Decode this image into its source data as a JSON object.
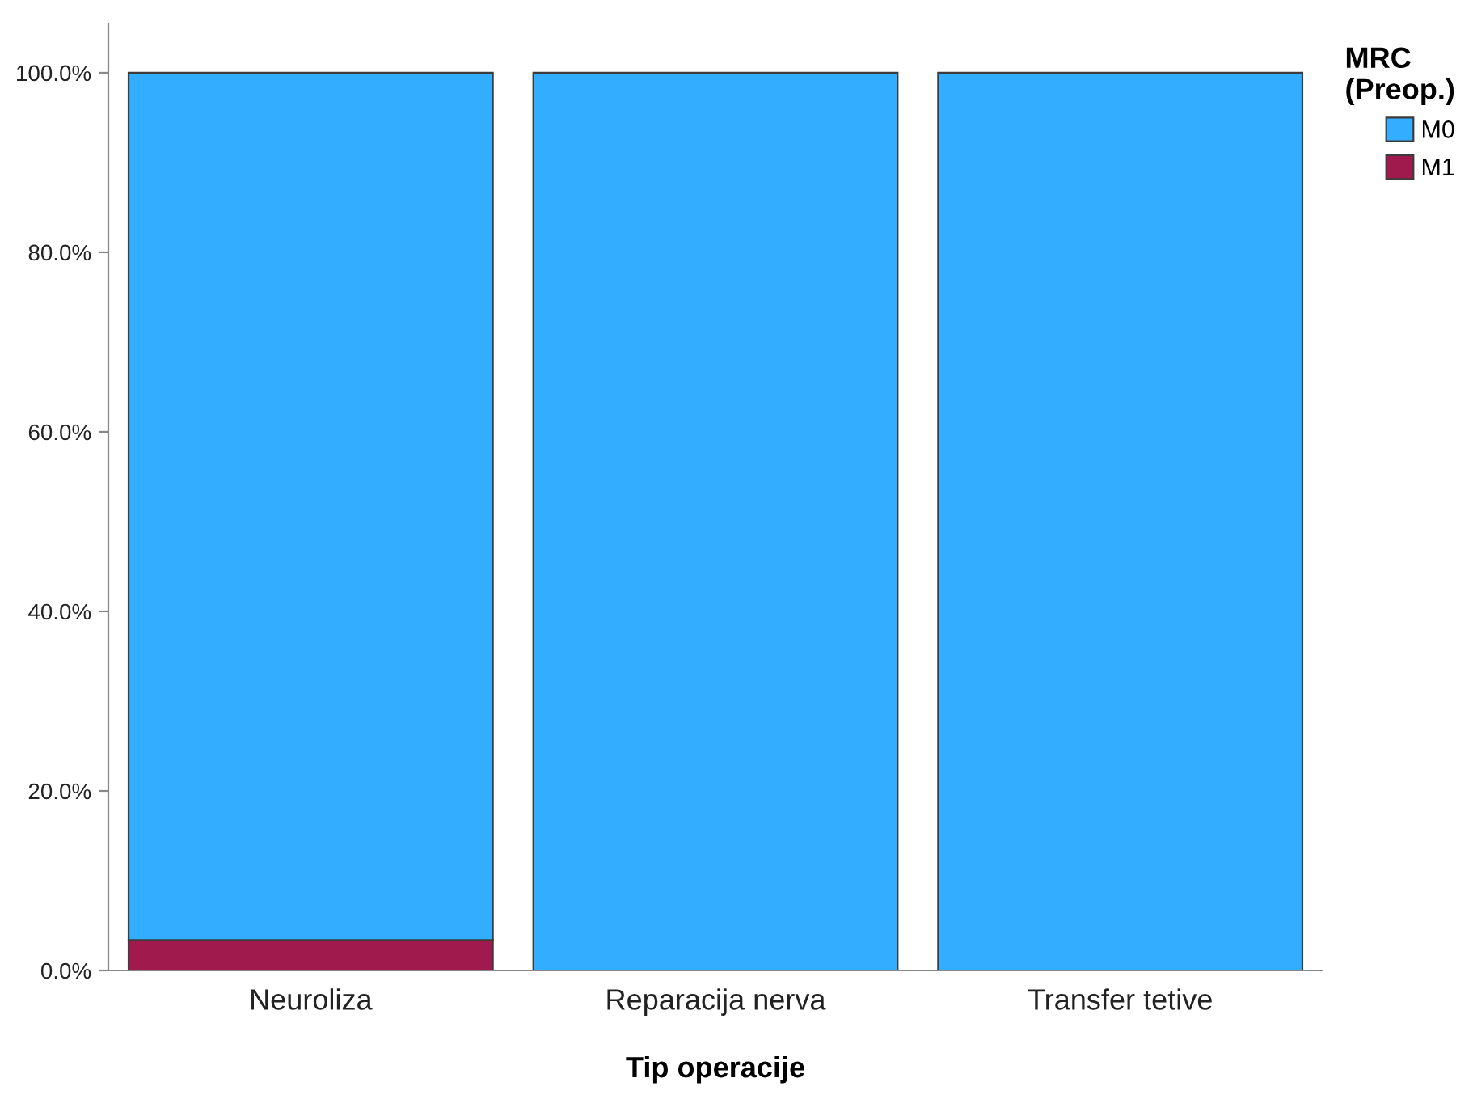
{
  "chart_data": {
    "type": "bar",
    "stacked": true,
    "xlabel": "Tip operacije",
    "legend_title": "MRC\n(Preop.)",
    "legend": "top right",
    "categories": [
      "Neuroliza",
      "Reparacija nerva",
      "Transfer tetive"
    ],
    "series": [
      {
        "name": "M1",
        "color": "#a01a4d",
        "values": [
          3.4,
          0,
          0
        ]
      },
      {
        "name": "M0",
        "color": "#33adff",
        "values": [
          96.6,
          100,
          100
        ]
      }
    ],
    "ylim": [
      0,
      105.4
    ],
    "yticks": [
      {
        "value": 0,
        "label": "0.0%"
      },
      {
        "value": 20,
        "label": "20.0%"
      },
      {
        "value": 40,
        "label": "40.0%"
      },
      {
        "value": 60,
        "label": "60.0%"
      },
      {
        "value": 80,
        "label": "80.0%"
      },
      {
        "value": 100,
        "label": "100.0%"
      }
    ],
    "grid": false
  }
}
